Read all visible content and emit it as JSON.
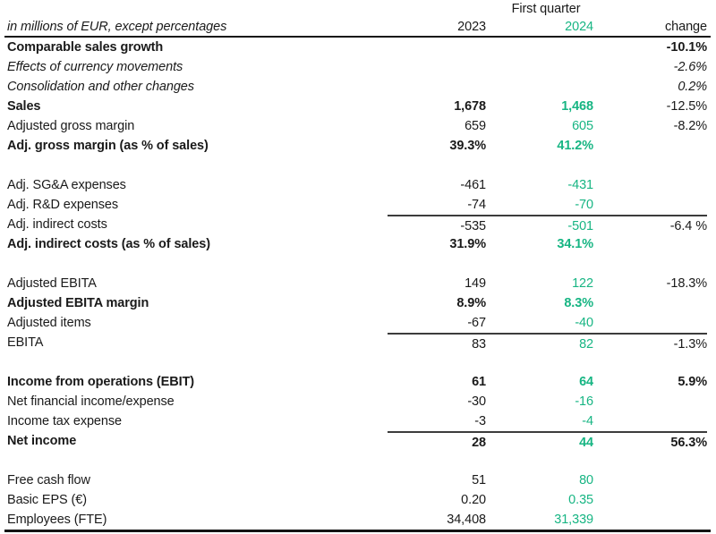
{
  "colors": {
    "green_2024": "#17b583",
    "text": "#1a1a1a",
    "rule": "#3c3c3c",
    "heavy_rule": "#151515"
  },
  "table": {
    "group_header": "First quarter",
    "unit_label": "in millions of EUR, except percentages",
    "columns": {
      "y2023": "2023",
      "y2024": "2024",
      "change": "change"
    },
    "rows": [
      {
        "label": "Comparable sales growth",
        "v23": "",
        "v24": "",
        "chg": "-10.1%",
        "ls": "b",
        "vs": "b",
        "cs": "b"
      },
      {
        "label": "Effects of currency movements",
        "v23": "",
        "v24": "",
        "chg": "-2.6%",
        "ls": "i",
        "vs": "i",
        "cs": "i"
      },
      {
        "label": "Consolidation and other changes",
        "v23": "",
        "v24": "",
        "chg": "0.2%",
        "ls": "i",
        "vs": "i",
        "cs": "i"
      },
      {
        "label": "Sales",
        "v23": "1,678",
        "v24": "1,468",
        "chg": "-12.5%",
        "ls": "b",
        "vs": "b",
        "cs": "n"
      },
      {
        "label": "Adjusted gross margin",
        "v23": "659",
        "v24": "605",
        "chg": "-8.2%",
        "ls": "n",
        "vs": "n",
        "cs": "n"
      },
      {
        "label": "Adj. gross margin (as % of sales)",
        "v23": "39.3%",
        "v24": "41.2%",
        "chg": "",
        "ls": "b",
        "vs": "b",
        "cs": "n",
        "gap": true
      },
      {
        "label": "Adj. SG&A expenses",
        "v23": "-461",
        "v24": "-431",
        "chg": "",
        "ls": "n",
        "vs": "n",
        "cs": "n"
      },
      {
        "label": "Adj. R&D expenses",
        "v23": "-74",
        "v24": "-70",
        "chg": "",
        "ls": "n",
        "vs": "n",
        "cs": "n"
      },
      {
        "label": "Adj. indirect costs",
        "v23": "-535",
        "v24": "-501",
        "chg": "-6.4 %",
        "ls": "n",
        "vs": "n",
        "cs": "n",
        "rule": true
      },
      {
        "label": "Adj. indirect costs (as % of sales)",
        "v23": "31.9%",
        "v24": "34.1%",
        "chg": "",
        "ls": "b",
        "vs": "b",
        "cs": "n",
        "gap": true
      },
      {
        "label": "Adjusted EBITA",
        "v23": "149",
        "v24": "122",
        "chg": "-18.3%",
        "ls": "n",
        "vs": "n",
        "cs": "n"
      },
      {
        "label": "Adjusted EBITA margin",
        "v23": "8.9%",
        "v24": "8.3%",
        "chg": "",
        "ls": "b",
        "vs": "b",
        "cs": "n"
      },
      {
        "label": "Adjusted items",
        "v23": "-67",
        "v24": "-40",
        "chg": "",
        "ls": "n",
        "vs": "n",
        "cs": "n"
      },
      {
        "label": "EBITA",
        "v23": "83",
        "v24": "82",
        "chg": "-1.3%",
        "ls": "n",
        "vs": "n",
        "cs": "n",
        "rule": true,
        "gap": true
      },
      {
        "label": "Income from operations (EBIT)",
        "v23": "61",
        "v24": "64",
        "chg": "5.9%",
        "ls": "b",
        "vs": "b",
        "cs": "b"
      },
      {
        "label": "Net financial income/expense",
        "v23": "-30",
        "v24": "-16",
        "chg": "",
        "ls": "n",
        "vs": "n",
        "cs": "n"
      },
      {
        "label": "Income tax expense",
        "v23": "-3",
        "v24": "-4",
        "chg": "",
        "ls": "n",
        "vs": "n",
        "cs": "n"
      },
      {
        "label": "Net income",
        "v23": "28",
        "v24": "44",
        "chg": "56.3%",
        "ls": "b",
        "vs": "b",
        "cs": "b",
        "rule": true,
        "gap": true
      },
      {
        "label": "Free cash flow",
        "v23": "51",
        "v24": "80",
        "chg": "",
        "ls": "n",
        "vs": "n",
        "cs": "n"
      },
      {
        "label": "Basic EPS (€)",
        "v23": "0.20",
        "v24": "0.35",
        "chg": "",
        "ls": "n",
        "vs": "n",
        "cs": "n"
      },
      {
        "label": "Employees (FTE)",
        "v23": "34,408",
        "v24": "31,339",
        "chg": "",
        "ls": "n",
        "vs": "n",
        "cs": "n"
      }
    ]
  }
}
